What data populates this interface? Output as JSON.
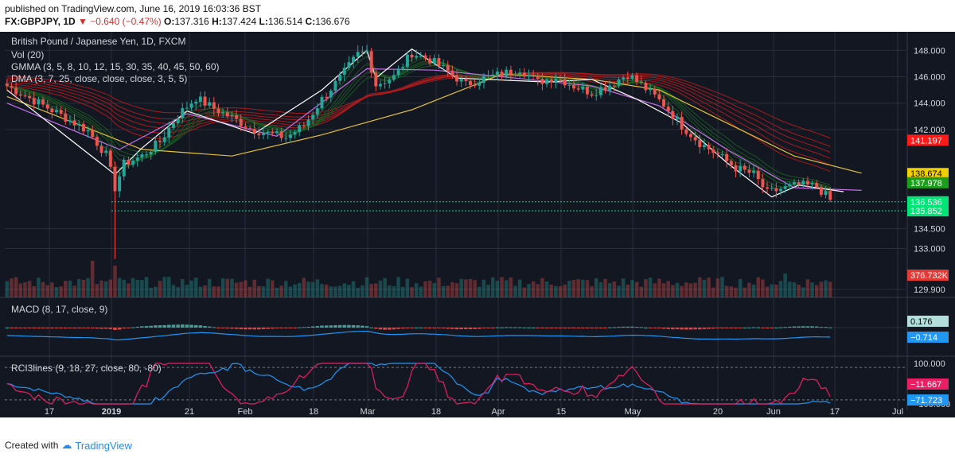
{
  "header": {
    "published": "published on TradingView.com, June 16, 2019 16:03:36 BST",
    "symbol": "FX:GBPJPY, 1D",
    "change": "▼ −0.640 (−0.47%)",
    "o_label": "O:",
    "o": "137.316",
    "h_label": "H:",
    "h": "137.424",
    "l_label": "L:",
    "l": "136.514",
    "c_label": "C:",
    "c": "136.676",
    "last": "136.676"
  },
  "footer": {
    "created": "Created with",
    "brand": "TradingView"
  },
  "colors": {
    "background": "#131722",
    "grid": "#2a2e39",
    "up": "#26a69a",
    "down": "#ef5350",
    "dma": "#e5c038",
    "dma_fast": "#ffffff",
    "dma_mid": "#c371e8",
    "macd": "#2196f3",
    "rci_short": "#e91e63",
    "rci_long": "#2196f3",
    "support": "#00e676"
  },
  "chart_data": [
    {
      "type": "candlestick",
      "title": "British Pound / Japanese Yen, 1D, FXCM",
      "indicators": [
        "Vol (20)",
        "GMMA (3, 5, 8, 10, 12, 15, 30, 35, 40, 45, 50, 60)",
        "DMA (3, 7, 25, close, close, close, 3, 5, 5)"
      ],
      "x_ticks": [
        "17",
        "2019",
        "21",
        "Feb",
        "18",
        "Mar",
        "18",
        "Apr",
        "15",
        "May",
        "20",
        "Jun",
        "17",
        "Jul"
      ],
      "y_ticks": [
        148.0,
        146.0,
        144.0,
        142.0,
        134.5,
        133.0,
        129.9
      ],
      "y_tick_labels": [
        "148.000",
        "146.000",
        "144.000",
        "142.000",
        "134.500",
        "133.000",
        "129.900"
      ],
      "ylim": [
        129.3,
        149.4
      ],
      "close_path": [
        [
          0,
          145.3
        ],
        [
          6,
          144.2
        ],
        [
          12,
          143.1
        ],
        [
          18,
          141.9
        ],
        [
          22,
          140.1
        ],
        [
          24,
          137.6
        ],
        [
          26,
          139.4
        ],
        [
          30,
          140.0
        ],
        [
          34,
          141.1
        ],
        [
          38,
          143.1
        ],
        [
          42,
          144.4
        ],
        [
          46,
          143.6
        ],
        [
          50,
          142.9
        ],
        [
          54,
          142.1
        ],
        [
          58,
          141.7
        ],
        [
          62,
          141.4
        ],
        [
          66,
          142.3
        ],
        [
          70,
          144.3
        ],
        [
          74,
          145.9
        ],
        [
          78,
          147.7
        ],
        [
          80,
          147.9
        ],
        [
          82,
          145.4
        ],
        [
          86,
          146.0
        ],
        [
          90,
          147.8
        ],
        [
          94,
          147.3
        ],
        [
          98,
          146.4
        ],
        [
          102,
          145.4
        ],
        [
          106,
          145.9
        ],
        [
          110,
          146.2
        ],
        [
          114,
          146.6
        ],
        [
          118,
          145.6
        ],
        [
          122,
          146.0
        ],
        [
          126,
          145.3
        ],
        [
          130,
          144.8
        ],
        [
          134,
          145.4
        ],
        [
          138,
          146.2
        ],
        [
          142,
          145.1
        ],
        [
          146,
          143.9
        ],
        [
          150,
          142.3
        ],
        [
          154,
          141.0
        ],
        [
          158,
          140.1
        ],
        [
          162,
          139.1
        ],
        [
          166,
          138.6
        ],
        [
          169,
          137.2
        ],
        [
          172,
          137.5
        ],
        [
          176,
          137.8
        ],
        [
          180,
          137.7
        ],
        [
          183,
          136.68
        ]
      ],
      "gmma_short_end": 138.3,
      "gmma_long_end": [
        140.4,
        140.7,
        141.0,
        141.3,
        141.6,
        141.9
      ],
      "dma_lines": [
        {
          "points": [
            [
              0,
              144.5
            ],
            [
              30,
              140.5
            ],
            [
              50,
              140.0
            ],
            [
              70,
              141.6
            ],
            [
              90,
              143.5
            ],
            [
              110,
              146.2
            ],
            [
              130,
              145.8
            ],
            [
              145,
              145.0
            ],
            [
              160,
              142.5
            ],
            [
              175,
              140.0
            ],
            [
              190,
              138.7
            ]
          ]
        },
        {
          "points": [
            [
              0,
              144.0
            ],
            [
              25,
              140.5
            ],
            [
              40,
              143.2
            ],
            [
              60,
              141.5
            ],
            [
              80,
              146.6
            ],
            [
              95,
              146.5
            ],
            [
              110,
              146.0
            ],
            [
              130,
              145.3
            ],
            [
              145,
              143.8
            ],
            [
              160,
              140.5
            ],
            [
              175,
              137.6
            ],
            [
              190,
              137.4
            ]
          ]
        },
        {
          "points": [
            [
              0,
              145.0
            ],
            [
              24,
              138.6
            ],
            [
              30,
              140.6
            ],
            [
              40,
              143.4
            ],
            [
              55,
              141.7
            ],
            [
              70,
              145.0
            ],
            [
              80,
              148.0
            ],
            [
              82,
              145.9
            ],
            [
              90,
              148.1
            ],
            [
              100,
              145.9
            ],
            [
              120,
              145.6
            ],
            [
              130,
              145.8
            ],
            [
              140,
              144.3
            ],
            [
              150,
              142.5
            ],
            [
              160,
              139.5
            ],
            [
              170,
              136.9
            ],
            [
              176,
              137.8
            ],
            [
              186,
              137.3
            ]
          ]
        }
      ],
      "price_labels": [
        {
          "value": "141.197",
          "color": "#ff1a1a"
        },
        {
          "value": "138.674",
          "color": "#f0d000"
        },
        {
          "value": "137.978",
          "color": "#1b9e1b"
        },
        {
          "value": "136.536",
          "color": "#00e676"
        },
        {
          "value": "135.852",
          "color": "#00e676"
        }
      ],
      "support_levels": [
        136.54,
        135.85
      ],
      "volume_last_label": "376.732K"
    },
    {
      "type": "bar",
      "title": "MACD (8, 17, close, 9)",
      "labels": [
        {
          "value": "0.176",
          "color": "#b2dfdb"
        },
        {
          "value": "−0.714",
          "color": "#2196f3"
        }
      ]
    },
    {
      "type": "line",
      "title": "RCI3lines (9, 18, 27, close, 80, -80)",
      "y_ticks": [
        100.0,
        -100.0
      ],
      "y_tick_labels": [
        "100.000",
        "−100.000"
      ],
      "labels": [
        {
          "value": "−11.667",
          "color": "#e91e63"
        },
        {
          "value": "−71.723",
          "color": "#2196f3"
        }
      ]
    }
  ]
}
